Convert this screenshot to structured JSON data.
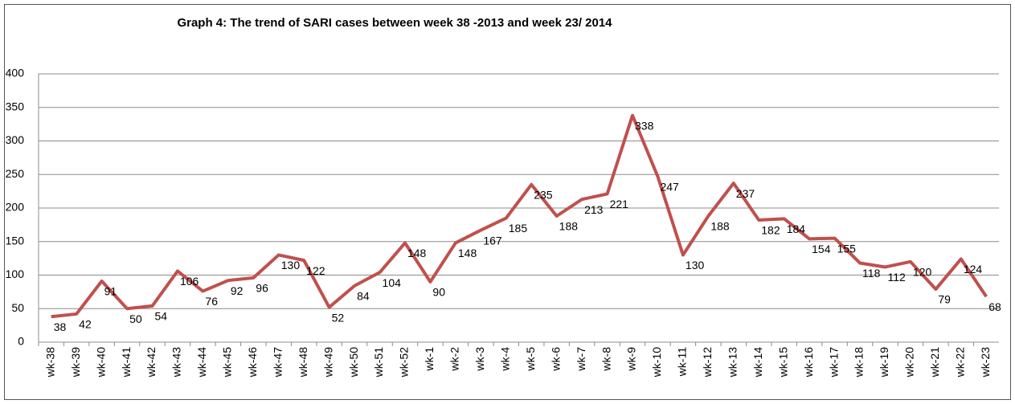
{
  "chart_data": {
    "type": "line",
    "title": "Graph 4: The trend of SARI cases between week 38 -2013 and week 23/ 2014",
    "categories": [
      "wk-38",
      "wk-39",
      "wk-40",
      "wk-41",
      "wk-42",
      "wk-43",
      "wk-44",
      "wk-45",
      "wk-46",
      "wk-47",
      "wk-48",
      "wk-49",
      "wk-50",
      "wk-51",
      "wk-52",
      "wk-1",
      "wk-2",
      "wk-3",
      "wk-4",
      "wk-5",
      "wk-6",
      "wk-7",
      "wk-8",
      "wk-9",
      "wk-10",
      "wk-11",
      "wk-12",
      "wk-13",
      "wk-14",
      "wk-15",
      "wk-16",
      "wk-17",
      "wk-18",
      "wk-19",
      "wk-20",
      "wk-21",
      "wk-22",
      "wk-23"
    ],
    "values": [
      38,
      42,
      91,
      50,
      54,
      106,
      76,
      92,
      96,
      130,
      122,
      52,
      84,
      104,
      148,
      90,
      148,
      167,
      185,
      235,
      188,
      213,
      221,
      338,
      247,
      130,
      188,
      237,
      182,
      184,
      154,
      155,
      118,
      112,
      120,
      79,
      124,
      68
    ],
    "color": "#c0504d",
    "ylim": [
      0,
      400
    ],
    "yticks": [
      0,
      50,
      100,
      150,
      200,
      250,
      300,
      350,
      400
    ],
    "grid": true
  }
}
